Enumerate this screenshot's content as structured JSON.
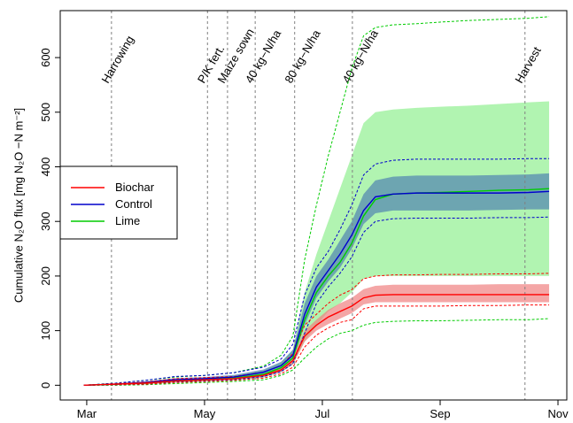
{
  "chart_data": {
    "type": "line",
    "y_label": "Cumulative N₂O flux [mg  N₂O −N m⁻²]",
    "x": [
      2.95,
      3.5,
      4.0,
      4.5,
      5.0,
      5.5,
      6.0,
      6.3,
      6.5,
      6.7,
      6.9,
      7.1,
      7.3,
      7.5,
      7.7,
      7.9,
      8.2,
      8.6,
      9.0,
      9.5,
      10.0,
      10.5,
      10.85
    ],
    "xlim": [
      2.55,
      11.15
    ],
    "xticks": [
      {
        "value": 3,
        "label": "Mar"
      },
      {
        "value": 5,
        "label": "May"
      },
      {
        "value": 7,
        "label": "Jul"
      },
      {
        "value": 9,
        "label": "Sep"
      },
      {
        "value": 11,
        "label": "Nov"
      }
    ],
    "ylim": [
      -27,
      686
    ],
    "yticks": [
      0,
      100,
      200,
      300,
      400,
      500,
      600
    ],
    "events": [
      {
        "x": 3.42,
        "label": "Harrowing"
      },
      {
        "x": 5.05,
        "label": "P/K fert."
      },
      {
        "x": 5.39,
        "label": "Maize sown"
      },
      {
        "x": 5.86,
        "label": "40 kg−N/ha"
      },
      {
        "x": 6.53,
        "label": "80 kg−N/ha"
      },
      {
        "x": 7.51,
        "label": "40 kg−N/ha"
      },
      {
        "x": 10.44,
        "label": "Harvest"
      }
    ],
    "legend": "left",
    "series": [
      {
        "name": "Biochar",
        "color": "#ff0000",
        "band_color": "#f08080",
        "values": [
          0,
          2,
          4,
          8,
          10,
          12,
          18,
          28,
          45,
          90,
          110,
          125,
          135,
          145,
          160,
          165,
          166,
          166,
          166,
          166,
          166,
          166,
          166
        ],
        "lower": [
          0,
          1,
          3,
          6,
          8,
          10,
          15,
          24,
          38,
          80,
          100,
          112,
          122,
          132,
          148,
          152,
          152,
          152,
          152,
          152,
          152,
          152,
          152
        ],
        "upper": [
          0,
          3,
          5,
          10,
          12,
          14,
          21,
          32,
          52,
          100,
          120,
          138,
          150,
          160,
          176,
          182,
          184,
          184,
          184,
          184,
          185,
          185,
          185
        ],
        "outer_lower": [
          0,
          1,
          2,
          5,
          7,
          9,
          13,
          21,
          33,
          70,
          92,
          105,
          115,
          120,
          140,
          145,
          145,
          145,
          145,
          146,
          146,
          147,
          147
        ],
        "outer_upper": [
          0,
          3,
          6,
          12,
          14,
          16,
          24,
          36,
          58,
          110,
          130,
          150,
          165,
          175,
          195,
          200,
          202,
          202,
          203,
          203,
          204,
          204,
          205
        ]
      },
      {
        "name": "Control",
        "color": "#0000cc",
        "band_color": "#3f6fb0",
        "values": [
          0,
          2,
          5,
          10,
          12,
          15,
          24,
          36,
          55,
          130,
          180,
          210,
          240,
          275,
          320,
          345,
          350,
          352,
          352,
          352,
          352,
          353,
          355
        ],
        "lower": [
          0,
          1,
          3,
          7,
          9,
          12,
          19,
          29,
          45,
          110,
          160,
          190,
          215,
          250,
          295,
          315,
          320,
          320,
          320,
          320,
          321,
          322,
          322
        ],
        "upper": [
          0,
          3,
          7,
          13,
          15,
          19,
          29,
          43,
          65,
          150,
          200,
          230,
          265,
          300,
          350,
          375,
          382,
          384,
          384,
          384,
          385,
          386,
          388
        ],
        "outer_lower": [
          0,
          1,
          2,
          6,
          8,
          10,
          16,
          25,
          40,
          95,
          150,
          180,
          205,
          235,
          280,
          300,
          305,
          306,
          306,
          306,
          307,
          307,
          308
        ],
        "outer_upper": [
          0,
          4,
          9,
          16,
          18,
          23,
          33,
          48,
          75,
          165,
          215,
          245,
          285,
          330,
          385,
          405,
          412,
          414,
          414,
          414,
          414,
          415,
          415
        ]
      },
      {
        "name": "Lime",
        "color": "#00cc00",
        "band_color": "#90f090",
        "values": [
          0,
          2,
          4,
          8,
          10,
          13,
          20,
          32,
          50,
          120,
          170,
          200,
          225,
          260,
          310,
          340,
          350,
          352,
          353,
          355,
          357,
          358,
          360
        ],
        "lower": [
          0,
          1,
          2,
          5,
          7,
          9,
          14,
          24,
          38,
          80,
          110,
          135,
          150,
          170,
          195,
          200,
          200,
          200,
          200,
          200,
          200,
          200,
          200
        ],
        "upper": [
          0,
          3,
          6,
          11,
          14,
          18,
          27,
          42,
          65,
          170,
          240,
          300,
          360,
          420,
          480,
          500,
          505,
          508,
          510,
          512,
          515,
          518,
          520
        ],
        "outer_lower": [
          0,
          0,
          1,
          3,
          5,
          7,
          10,
          18,
          28,
          50,
          70,
          85,
          95,
          100,
          110,
          115,
          117,
          118,
          118,
          119,
          120,
          120,
          122
        ],
        "outer_upper": [
          0,
          4,
          9,
          15,
          18,
          23,
          35,
          55,
          90,
          230,
          330,
          420,
          500,
          580,
          640,
          655,
          660,
          662,
          665,
          668,
          670,
          672,
          675
        ]
      }
    ]
  }
}
